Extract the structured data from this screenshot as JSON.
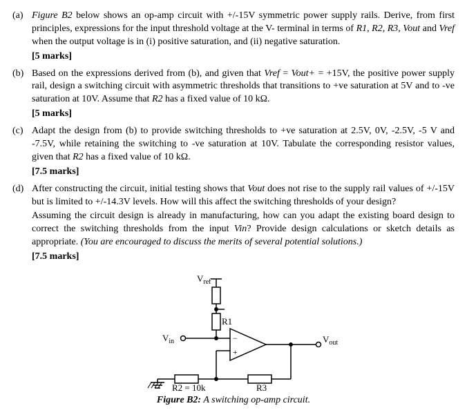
{
  "parts": {
    "a": {
      "label": "(a)",
      "text": "<span class=\"italic\">Figure B2</span> below shows an op-amp circuit with +/-15V symmetric power supply rails. Derive, from first principles, expressions for the input threshold voltage at the V- terminal in terms of <span class=\"italic\">R1, R2, R3, Vout</span> and <span class=\"italic\">Vref</span> when the output voltage is in (i) positive saturation, and (ii) negative saturation.",
      "marks": "[5 marks]"
    },
    "b": {
      "label": "(b)",
      "text": "Based on the expressions derived from (b), and given that <span class=\"italic\">Vref</span> = <span class=\"italic\">Vout+</span> = +15V, the positive power supply rail, design a switching circuit with asymmetric thresholds that transitions to +ve saturation at 5V and to -ve saturation at 10V. Assume that <span class=\"italic\">R2</span> has a fixed value of 10 kΩ.",
      "marks": "[5 marks]"
    },
    "c": {
      "label": "(c)",
      "text": "Adapt the design from (b) to provide switching thresholds to +ve saturation at 2.5V, 0V, -2.5V, -5 V and -7.5V, while retaining the switching to -ve saturation at 10V. Tabulate the corresponding resistor values, given that <span class=\"italic\">R2</span> has a fixed value of 10 kΩ.",
      "marks": "[7.5 marks]"
    },
    "d": {
      "label": "(d)",
      "text1": "After constructing the circuit, initial testing shows that <span class=\"italic\">Vout</span> does not rise to the supply rail values of +/-15V but is limited to +/-14.3V levels. How will this affect the switching thresholds of your design?",
      "text2": "Assuming the circuit design is already in manufacturing, how can you adapt the existing board design to correct the switching thresholds from the input <span class=\"italic\">Vin</span>? Provide design calculations or sketch details as appropriate. <span class=\"italic\">(You are encouraged to discuss the merits of several potential solutions.)</span>",
      "marks": "[7.5 marks]"
    }
  },
  "figure": {
    "vref": "V",
    "vref_sub": "ref",
    "vin": "V",
    "vin_sub": "in",
    "vout": "V",
    "vout_sub": "out",
    "r1": "R1",
    "r2": "R2 = 10k",
    "r3": "R3",
    "caption_label": "Figure B2:",
    "caption_text": " A switching op-amp circuit.",
    "colors": {
      "stroke": "#000000",
      "fill": "#ffffff"
    }
  }
}
